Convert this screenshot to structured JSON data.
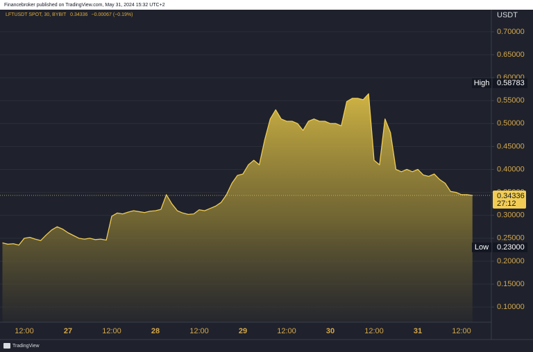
{
  "chart_data": {
    "type": "area",
    "attribution": "Financebroker published on TradingView.com, May 31, 2024 15:32 UTC+2",
    "symbol": "LFTUSDT SPOT, 30, BYBIT",
    "last": "0.34336",
    "change": "−0.00067 (−0.19%)",
    "y_axis_title": "USDT",
    "footer": "TradingView",
    "color": "#f2cd55",
    "grid": true,
    "categories": [
      null,
      null,
      null,
      null,
      "12:00",
      null,
      null,
      null,
      null,
      null,
      null,
      null,
      "27",
      null,
      null,
      null,
      null,
      null,
      null,
      null,
      "12:00",
      null,
      null,
      null,
      null,
      null,
      null,
      null,
      "28",
      null,
      null,
      null,
      null,
      null,
      null,
      null,
      "12:00",
      null,
      null,
      null,
      null,
      null,
      null,
      null,
      "29",
      null,
      null,
      null,
      null,
      null,
      null,
      null,
      "12:00",
      null,
      null,
      null,
      null,
      null,
      null,
      null,
      "30",
      null,
      null,
      null,
      null,
      null,
      null,
      null,
      "12:00",
      null,
      null,
      null,
      null,
      null,
      null,
      null,
      "31",
      null,
      null,
      null,
      null,
      null,
      null,
      null,
      "12:00",
      null,
      null
    ],
    "values": [
      0.24,
      0.237,
      0.238,
      0.235,
      0.25,
      0.252,
      0.248,
      0.245,
      0.257,
      0.268,
      0.275,
      0.27,
      0.262,
      0.256,
      0.25,
      0.248,
      0.25,
      0.247,
      0.248,
      0.246,
      0.298,
      0.305,
      0.303,
      0.307,
      0.31,
      0.308,
      0.306,
      0.309,
      0.31,
      0.313,
      0.345,
      0.325,
      0.31,
      0.305,
      0.302,
      0.303,
      0.312,
      0.31,
      0.315,
      0.32,
      0.328,
      0.345,
      0.37,
      0.387,
      0.39,
      0.41,
      0.42,
      0.41,
      0.465,
      0.51,
      0.53,
      0.51,
      0.505,
      0.505,
      0.5,
      0.485,
      0.505,
      0.51,
      0.505,
      0.505,
      0.5,
      0.5,
      0.495,
      0.548,
      0.555,
      0.555,
      0.552,
      0.565,
      0.42,
      0.41,
      0.51,
      0.48,
      0.4,
      0.395,
      0.4,
      0.395,
      0.4,
      0.388,
      0.385,
      0.39,
      0.378,
      0.37,
      0.352,
      0.35,
      0.345,
      0.345,
      0.34336
    ],
    "ylim": [
      0.067,
      0.724
    ],
    "yticks": [
      {
        "value": 0.1,
        "label": "0.10000"
      },
      {
        "value": 0.15,
        "label": "0.15000"
      },
      {
        "value": 0.2,
        "label": "0.20000"
      },
      {
        "value": 0.25,
        "label": "0.25000"
      },
      {
        "value": 0.3,
        "label": "0.30000"
      },
      {
        "value": 0.35,
        "label": "0.35000"
      },
      {
        "value": 0.4,
        "label": "0.40000"
      },
      {
        "value": 0.45,
        "label": "0.45000"
      },
      {
        "value": 0.5,
        "label": "0.50000"
      },
      {
        "value": 0.55,
        "label": "0.55000"
      },
      {
        "value": 0.6,
        "label": "0.60000"
      },
      {
        "value": 0.65,
        "label": "0.65000"
      },
      {
        "value": 0.7,
        "label": "0.70000"
      }
    ],
    "annotations": [
      {
        "text": "High",
        "value": 0.58783,
        "value_label": "0.58783"
      },
      {
        "text": "Low",
        "value": 0.23,
        "value_label": "0.23000"
      }
    ],
    "current_price": {
      "value": 0.34336,
      "label": "0.34336",
      "countdown": "27:12"
    }
  }
}
